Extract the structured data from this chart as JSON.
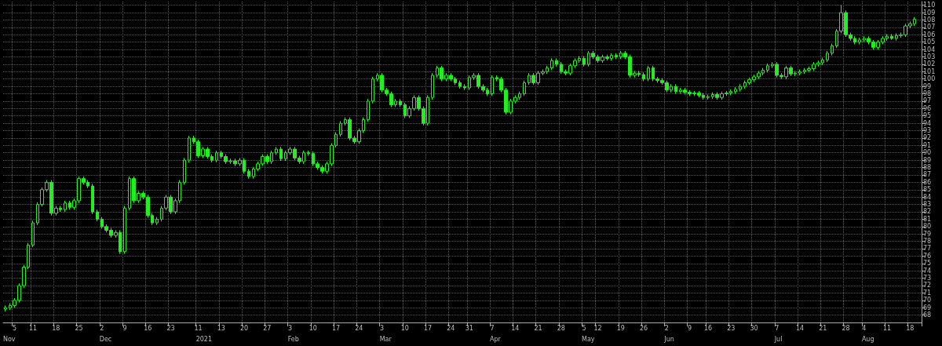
{
  "chart_data": {
    "type": "candlestick",
    "categories": [
      null,
      null,
      "5",
      null,
      null,
      null,
      "11",
      null,
      null,
      null,
      null,
      "18",
      null,
      null,
      null,
      null,
      "25",
      null,
      null,
      null,
      null,
      "2",
      null,
      null,
      null,
      null,
      "9",
      null,
      null,
      null,
      null,
      "16",
      null,
      null,
      null,
      null,
      "23",
      null,
      null,
      null,
      null,
      null,
      "11",
      null,
      null,
      null,
      null,
      "13",
      null,
      null,
      null,
      null,
      "20",
      null,
      null,
      null,
      null,
      "27",
      null,
      null,
      null,
      null,
      "3",
      null,
      null,
      null,
      null,
      "10",
      null,
      null,
      null,
      null,
      "17",
      null,
      null,
      null,
      null,
      "24",
      null,
      null,
      null,
      null,
      "3",
      null,
      null,
      null,
      null,
      "10",
      null,
      null,
      null,
      null,
      "17",
      null,
      null,
      null,
      null,
      "24",
      null,
      null,
      null,
      "31",
      null,
      null,
      null,
      null,
      "7",
      null,
      null,
      null,
      null,
      "14",
      null,
      null,
      null,
      null,
      "21",
      null,
      null,
      null,
      null,
      "28",
      null,
      null,
      null,
      null,
      "5",
      null,
      null,
      "12",
      null,
      null,
      null,
      null,
      "19",
      null,
      null,
      null,
      null,
      "26",
      null,
      null,
      null,
      null,
      "2",
      null,
      null,
      null,
      null,
      "9",
      null,
      null,
      null,
      "16",
      null,
      null,
      null,
      null,
      "23",
      null,
      null,
      null,
      null,
      "30",
      null,
      null,
      null,
      null,
      "7",
      null,
      null,
      null,
      null,
      "14",
      null,
      null,
      null,
      null,
      "21",
      null,
      null,
      null,
      null,
      "28",
      null,
      null,
      null,
      "4",
      null,
      null,
      null,
      null,
      "11",
      null,
      null,
      null,
      null,
      "18",
      null
    ],
    "series": [
      {
        "color": "#22ee22",
        "ohlc": [
          [
            68.8,
            69.3,
            68.5,
            69.0
          ],
          [
            69.0,
            69.6,
            68.7,
            69.3
          ],
          [
            69.3,
            70.3,
            69.0,
            70.0
          ],
          [
            70.0,
            72.3,
            69.7,
            72.0
          ],
          [
            72.0,
            74.8,
            71.7,
            74.5
          ],
          [
            74.5,
            77.8,
            74.2,
            77.5
          ],
          [
            77.5,
            80.8,
            77.2,
            80.5
          ],
          [
            80.5,
            83.3,
            80.2,
            83.0
          ],
          [
            83.0,
            85.3,
            82.7,
            85.0
          ],
          [
            85.0,
            86.3,
            84.7,
            86.0
          ],
          [
            86.0,
            86.3,
            81.5,
            81.8
          ],
          [
            81.8,
            82.8,
            81.5,
            82.5
          ],
          [
            82.5,
            82.8,
            82.0,
            82.3
          ],
          [
            82.3,
            83.5,
            82.0,
            83.2
          ],
          [
            83.2,
            83.5,
            82.3,
            82.6
          ],
          [
            82.6,
            83.8,
            82.3,
            83.5
          ],
          [
            83.5,
            86.8,
            83.2,
            86.5
          ],
          [
            86.5,
            86.8,
            85.7,
            86.0
          ],
          [
            86.0,
            86.3,
            85.2,
            85.5
          ],
          [
            85.5,
            85.8,
            81.7,
            82.0
          ],
          [
            82.0,
            82.3,
            80.7,
            81.0
          ],
          [
            81.0,
            81.3,
            79.7,
            80.0
          ],
          [
            80.0,
            80.3,
            79.2,
            79.5
          ],
          [
            79.5,
            79.8,
            78.5,
            78.8
          ],
          [
            78.8,
            79.5,
            78.5,
            79.2
          ],
          [
            79.2,
            79.5,
            76.3,
            76.6
          ],
          [
            76.6,
            82.8,
            76.3,
            82.5
          ],
          [
            82.5,
            86.8,
            82.2,
            86.5
          ],
          [
            86.5,
            86.8,
            83.2,
            83.5
          ],
          [
            83.5,
            84.8,
            83.2,
            84.5
          ],
          [
            84.5,
            84.8,
            83.7,
            84.0
          ],
          [
            84.0,
            84.3,
            81.2,
            81.5
          ],
          [
            81.5,
            81.8,
            80.2,
            80.5
          ],
          [
            80.5,
            81.3,
            80.2,
            81.0
          ],
          [
            81.0,
            82.8,
            80.7,
            82.5
          ],
          [
            82.5,
            84.3,
            82.2,
            84.0
          ],
          [
            84.0,
            84.3,
            81.7,
            82.0
          ],
          [
            82.0,
            83.8,
            81.7,
            83.5
          ],
          [
            83.5,
            86.3,
            83.2,
            86.0
          ],
          [
            86.0,
            89.3,
            85.7,
            89.0
          ],
          [
            89.0,
            92.3,
            88.7,
            92.0
          ],
          [
            92.0,
            92.3,
            91.2,
            91.5
          ],
          [
            91.5,
            91.8,
            89.3,
            89.6
          ],
          [
            89.6,
            90.8,
            89.3,
            90.5
          ],
          [
            90.5,
            90.8,
            89.2,
            89.5
          ],
          [
            89.5,
            89.8,
            88.7,
            89.0
          ],
          [
            89.0,
            90.3,
            88.7,
            90.0
          ],
          [
            90.0,
            90.3,
            89.2,
            89.5
          ],
          [
            89.5,
            89.8,
            88.5,
            88.8
          ],
          [
            88.8,
            89.2,
            88.5,
            88.9
          ],
          [
            88.9,
            89.2,
            88.2,
            88.5
          ],
          [
            88.5,
            89.3,
            88.2,
            89.0
          ],
          [
            89.0,
            89.3,
            87.2,
            87.5
          ],
          [
            87.5,
            87.8,
            86.5,
            86.8
          ],
          [
            86.8,
            88.1,
            86.5,
            87.8
          ],
          [
            87.8,
            88.8,
            87.5,
            88.5
          ],
          [
            88.5,
            89.8,
            88.2,
            89.5
          ],
          [
            89.5,
            89.8,
            88.5,
            88.8
          ],
          [
            88.8,
            90.3,
            88.5,
            90.0
          ],
          [
            90.0,
            90.8,
            89.7,
            90.5
          ],
          [
            90.5,
            90.8,
            88.9,
            89.2
          ],
          [
            89.2,
            90.3,
            88.9,
            90.0
          ],
          [
            90.0,
            90.8,
            89.7,
            90.5
          ],
          [
            90.5,
            90.8,
            89.0,
            89.3
          ],
          [
            89.3,
            89.6,
            88.5,
            88.8
          ],
          [
            88.8,
            90.3,
            88.5,
            90.0
          ],
          [
            90.0,
            90.3,
            89.6,
            89.9
          ],
          [
            89.9,
            90.2,
            88.2,
            88.5
          ],
          [
            88.5,
            88.8,
            87.7,
            88.0
          ],
          [
            88.0,
            88.3,
            87.2,
            87.5
          ],
          [
            87.5,
            88.8,
            87.2,
            88.5
          ],
          [
            88.5,
            91.3,
            88.2,
            91.0
          ],
          [
            91.0,
            92.8,
            90.7,
            92.5
          ],
          [
            92.5,
            94.3,
            92.2,
            94.0
          ],
          [
            94.0,
            94.8,
            93.7,
            94.5
          ],
          [
            94.5,
            94.8,
            91.7,
            92.0
          ],
          [
            92.0,
            92.3,
            91.2,
            91.5
          ],
          [
            91.5,
            93.3,
            91.2,
            93.0
          ],
          [
            93.0,
            94.8,
            92.7,
            94.5
          ],
          [
            94.5,
            97.3,
            94.2,
            97.0
          ],
          [
            97.0,
            100.3,
            96.7,
            100.0
          ],
          [
            100.0,
            100.8,
            99.7,
            100.5
          ],
          [
            100.5,
            100.8,
            98.2,
            98.5
          ],
          [
            98.5,
            98.8,
            97.7,
            98.0
          ],
          [
            98.0,
            98.3,
            96.2,
            96.5
          ],
          [
            96.5,
            97.3,
            96.2,
            97.0
          ],
          [
            97.0,
            97.3,
            96.2,
            96.5
          ],
          [
            96.5,
            96.8,
            94.7,
            95.0
          ],
          [
            95.0,
            96.3,
            94.7,
            96.0
          ],
          [
            96.0,
            97.8,
            95.7,
            97.5
          ],
          [
            97.5,
            97.8,
            95.7,
            96.0
          ],
          [
            96.0,
            96.3,
            93.7,
            94.0
          ],
          [
            94.0,
            97.8,
            93.7,
            97.5
          ],
          [
            97.5,
            100.8,
            97.2,
            100.5
          ],
          [
            100.5,
            101.8,
            100.2,
            101.5
          ],
          [
            101.5,
            101.8,
            99.7,
            100.0
          ],
          [
            100.0,
            100.8,
            99.7,
            100.5
          ],
          [
            100.5,
            100.8,
            99.7,
            100.0
          ],
          [
            100.0,
            100.3,
            99.2,
            99.5
          ],
          [
            99.5,
            99.8,
            98.7,
            99.0
          ],
          [
            99.0,
            99.3,
            98.5,
            98.8
          ],
          [
            98.8,
            100.5,
            98.5,
            100.2
          ],
          [
            100.2,
            100.8,
            99.9,
            100.5
          ],
          [
            100.5,
            100.8,
            98.7,
            99.0
          ],
          [
            99.0,
            99.3,
            98.2,
            98.5
          ],
          [
            98.5,
            98.8,
            97.7,
            98.0
          ],
          [
            98.0,
            100.5,
            97.7,
            100.2
          ],
          [
            100.2,
            100.5,
            99.7,
            100.0
          ],
          [
            100.0,
            100.3,
            98.2,
            98.5
          ],
          [
            98.5,
            98.8,
            95.2,
            95.5
          ],
          [
            95.5,
            97.3,
            95.2,
            97.0
          ],
          [
            97.0,
            97.8,
            96.7,
            97.5
          ],
          [
            97.5,
            98.3,
            97.2,
            98.0
          ],
          [
            98.0,
            99.8,
            97.7,
            99.5
          ],
          [
            99.5,
            100.8,
            99.2,
            100.5
          ],
          [
            100.5,
            100.8,
            99.2,
            99.5
          ],
          [
            99.5,
            101.1,
            99.2,
            100.8
          ],
          [
            100.8,
            101.3,
            100.5,
            101.0
          ],
          [
            101.0,
            101.8,
            100.7,
            101.5
          ],
          [
            101.5,
            102.8,
            101.2,
            102.5
          ],
          [
            102.5,
            102.8,
            101.7,
            102.0
          ],
          [
            102.0,
            102.3,
            100.7,
            101.0
          ],
          [
            101.0,
            101.3,
            100.5,
            100.8
          ],
          [
            100.8,
            102.1,
            100.5,
            101.8
          ],
          [
            101.8,
            102.8,
            101.5,
            102.5
          ],
          [
            102.5,
            103.1,
            102.2,
            102.8
          ],
          [
            102.8,
            103.1,
            101.7,
            102.0
          ],
          [
            102.0,
            103.8,
            101.7,
            103.5
          ],
          [
            103.5,
            103.8,
            102.7,
            103.0
          ],
          [
            103.0,
            103.3,
            102.2,
            102.5
          ],
          [
            102.5,
            103.3,
            102.2,
            103.0
          ],
          [
            103.0,
            103.3,
            102.5,
            102.8
          ],
          [
            102.8,
            103.5,
            102.5,
            103.2
          ],
          [
            103.2,
            103.5,
            102.7,
            103.0
          ],
          [
            103.0,
            103.8,
            102.7,
            103.5
          ],
          [
            103.5,
            103.8,
            102.7,
            103.0
          ],
          [
            103.0,
            103.3,
            100.2,
            100.5
          ],
          [
            100.5,
            101.1,
            100.2,
            100.8
          ],
          [
            100.8,
            101.1,
            100.3,
            100.6
          ],
          [
            100.6,
            100.9,
            99.7,
            100.0
          ],
          [
            100.0,
            101.8,
            99.7,
            101.5
          ],
          [
            101.5,
            101.8,
            99.7,
            100.0
          ],
          [
            100.0,
            100.3,
            99.5,
            99.8
          ],
          [
            99.8,
            100.1,
            99.2,
            99.5
          ],
          [
            99.5,
            99.8,
            98.2,
            98.5
          ],
          [
            98.5,
            99.3,
            98.2,
            99.0
          ],
          [
            99.0,
            99.3,
            98.0,
            98.3
          ],
          [
            98.3,
            98.8,
            98.0,
            98.5
          ],
          [
            98.5,
            98.8,
            97.9,
            98.2
          ],
          [
            98.2,
            98.5,
            97.7,
            98.0
          ],
          [
            98.0,
            98.4,
            97.7,
            98.1
          ],
          [
            98.1,
            98.4,
            97.5,
            97.8
          ],
          [
            97.8,
            98.1,
            97.2,
            97.5
          ],
          [
            97.5,
            97.9,
            97.2,
            97.6
          ],
          [
            97.6,
            98.2,
            97.3,
            97.9
          ],
          [
            97.9,
            98.2,
            97.2,
            97.5
          ],
          [
            97.5,
            98.3,
            97.2,
            98.0
          ],
          [
            98.0,
            98.4,
            97.7,
            98.1
          ],
          [
            98.1,
            98.6,
            97.8,
            98.3
          ],
          [
            98.3,
            98.9,
            98.0,
            98.6
          ],
          [
            98.6,
            99.3,
            98.3,
            99.0
          ],
          [
            99.0,
            99.8,
            98.7,
            99.5
          ],
          [
            99.5,
            100.2,
            99.2,
            99.9
          ],
          [
            99.9,
            100.6,
            99.6,
            100.3
          ],
          [
            100.3,
            101.1,
            100.0,
            100.8
          ],
          [
            100.8,
            101.5,
            100.5,
            101.2
          ],
          [
            101.2,
            102.1,
            100.9,
            101.8
          ],
          [
            101.8,
            102.3,
            101.5,
            102.0
          ],
          [
            102.0,
            102.3,
            100.2,
            100.5
          ],
          [
            100.5,
            100.8,
            100.0,
            100.3
          ],
          [
            100.3,
            101.8,
            100.0,
            101.5
          ],
          [
            101.5,
            101.8,
            100.4,
            100.7
          ],
          [
            100.7,
            101.1,
            100.4,
            100.8
          ],
          [
            100.8,
            101.3,
            100.5,
            101.0
          ],
          [
            101.0,
            101.5,
            100.7,
            101.2
          ],
          [
            101.2,
            101.7,
            100.9,
            101.4
          ],
          [
            101.4,
            102.3,
            101.1,
            102.0
          ],
          [
            102.0,
            102.5,
            101.7,
            102.2
          ],
          [
            102.2,
            102.9,
            101.9,
            102.6
          ],
          [
            102.6,
            103.8,
            102.3,
            103.5
          ],
          [
            103.5,
            104.8,
            103.2,
            104.5
          ],
          [
            104.5,
            106.8,
            104.2,
            106.5
          ],
          [
            106.5,
            110.0,
            106.2,
            109.0
          ],
          [
            109.0,
            109.3,
            105.7,
            106.0
          ],
          [
            106.0,
            106.3,
            105.2,
            105.5
          ],
          [
            105.5,
            105.8,
            104.7,
            105.0
          ],
          [
            105.0,
            105.6,
            104.7,
            105.3
          ],
          [
            105.3,
            105.8,
            105.0,
            105.5
          ],
          [
            105.5,
            105.8,
            104.7,
            105.0
          ],
          [
            105.0,
            105.3,
            104.0,
            104.3
          ],
          [
            104.3,
            105.3,
            104.0,
            105.0
          ],
          [
            105.0,
            105.8,
            104.7,
            105.5
          ],
          [
            105.5,
            106.1,
            105.2,
            105.8
          ],
          [
            105.8,
            106.1,
            105.3,
            105.5
          ],
          [
            105.5,
            106.2,
            105.2,
            105.9
          ],
          [
            105.9,
            106.3,
            105.6,
            106.0
          ],
          [
            106.0,
            107.5,
            105.7,
            107.2
          ],
          [
            107.2,
            107.8,
            106.9,
            107.5
          ],
          [
            107.5,
            108.4,
            107.2,
            108.1
          ]
        ]
      }
    ],
    "ylim": [
      67,
      110.5
    ],
    "yticks": [
      68,
      69,
      70,
      71,
      72,
      73,
      74,
      75,
      76,
      77,
      78,
      79,
      80,
      81,
      82,
      83,
      84,
      85,
      86,
      87,
      88,
      89,
      90,
      91,
      92,
      93,
      94,
      95,
      96,
      97,
      98,
      99,
      100,
      101,
      102,
      103,
      104,
      105,
      106,
      107,
      108,
      109,
      110
    ],
    "grid": true,
    "annotations": [
      "Nov",
      "Dec",
      "2021",
      "Feb",
      "Mar",
      "Apr",
      "May",
      "Jun",
      "Jul",
      "Aug"
    ]
  }
}
